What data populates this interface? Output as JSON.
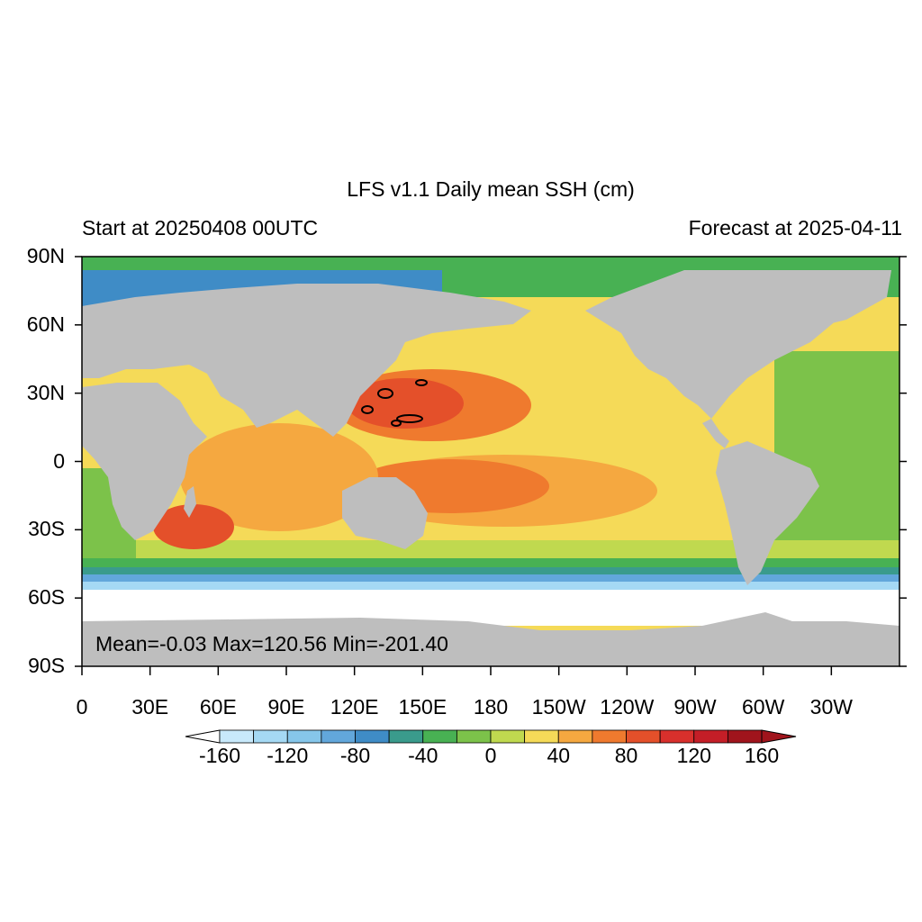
{
  "title": "LFS v1.1 Daily mean SSH (cm)",
  "subtitle_left": "Start at 20250408 00UTC",
  "subtitle_right": "Forecast at 2025-04-11",
  "stats": "Mean=-0.03  Max=120.56  Min=-201.40",
  "map": {
    "projection": "cylindrical equidistant",
    "lon_range": [
      0,
      360
    ],
    "lat_range": [
      -90,
      90
    ],
    "lat_ticks": [
      {
        "value": 90,
        "label": "90N"
      },
      {
        "value": 60,
        "label": "60N"
      },
      {
        "value": 30,
        "label": "30N"
      },
      {
        "value": 0,
        "label": "0"
      },
      {
        "value": -30,
        "label": "30S"
      },
      {
        "value": -60,
        "label": "60S"
      },
      {
        "value": -90,
        "label": "90S"
      }
    ],
    "lon_ticks": [
      {
        "value": 0,
        "label": "0"
      },
      {
        "value": 30,
        "label": "30E"
      },
      {
        "value": 60,
        "label": "60E"
      },
      {
        "value": 90,
        "label": "90E"
      },
      {
        "value": 120,
        "label": "120E"
      },
      {
        "value": 150,
        "label": "150E"
      },
      {
        "value": 180,
        "label": "180"
      },
      {
        "value": 210,
        "label": "150W"
      },
      {
        "value": 240,
        "label": "120W"
      },
      {
        "value": 270,
        "label": "90W"
      },
      {
        "value": 300,
        "label": "60W"
      },
      {
        "value": 330,
        "label": "30W"
      }
    ],
    "land_color": "#bebebe",
    "ocean_missing_color": "#ffffff"
  },
  "colorbar": {
    "levels": [
      -160,
      -140,
      -120,
      -100,
      -80,
      -60,
      -40,
      -20,
      0,
      20,
      40,
      60,
      80,
      100,
      120,
      140,
      160
    ],
    "labels": [
      {
        "value": -160,
        "label": "-160"
      },
      {
        "value": -120,
        "label": "-120"
      },
      {
        "value": -80,
        "label": "-80"
      },
      {
        "value": -40,
        "label": "-40"
      },
      {
        "value": 0,
        "label": "0"
      },
      {
        "value": 40,
        "label": "40"
      },
      {
        "value": 80,
        "label": "80"
      },
      {
        "value": 120,
        "label": "120"
      },
      {
        "value": 160,
        "label": "160"
      }
    ],
    "colors": [
      "#ffffff",
      "#c8e9fb",
      "#a5d9f4",
      "#86c6ea",
      "#62a7db",
      "#3f8cc6",
      "#3a9b8c",
      "#48b153",
      "#7cc24a",
      "#c0d94f",
      "#f5da58",
      "#f5a840",
      "#ef7a2e",
      "#e4502a",
      "#d8302c",
      "#c41e27",
      "#a0141c"
    ],
    "end_arrows": true
  }
}
